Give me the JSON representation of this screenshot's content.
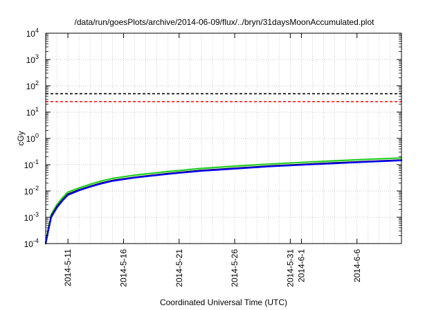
{
  "chart_data": {
    "type": "line",
    "title": "/data/run/goesPlots/archive/2014-06-09/flux/../bryn/31daysMoonAccumulated.plot",
    "xlabel": "Coordinated Universal Time (UTC)",
    "ylabel": "cGy",
    "y_scale": "log",
    "grid": true,
    "x_range": [
      "2014-05-09",
      "2014-06-10"
    ],
    "ylim": [
      0.0001,
      10000
    ],
    "x_ticks": [
      "2014-5-11",
      "2014-5-16",
      "2014-5-21",
      "2014-5-26",
      "2014-5-31",
      "2014-6-1",
      "2014-6-6"
    ],
    "x_tick_dates": [
      "2014-05-11",
      "2014-05-16",
      "2014-05-21",
      "2014-05-26",
      "2014-05-31",
      "2014-06-01",
      "2014-06-06"
    ],
    "y_ticks": [
      {
        "value": 0.0001,
        "base": "10",
        "exp": "-4"
      },
      {
        "value": 0.001,
        "base": "10",
        "exp": "-3"
      },
      {
        "value": 0.01,
        "base": "10",
        "exp": "-2"
      },
      {
        "value": 0.1,
        "base": "10",
        "exp": "-1"
      },
      {
        "value": 1,
        "base": "10",
        "exp": "0"
      },
      {
        "value": 10,
        "base": "10",
        "exp": "1"
      },
      {
        "value": 100,
        "base": "10",
        "exp": "2"
      },
      {
        "value": 1000,
        "base": "10",
        "exp": "3"
      },
      {
        "value": 10000,
        "base": "10",
        "exp": "4"
      }
    ],
    "thresholds": [
      {
        "value": 50,
        "color": "#000000",
        "style": "dashed"
      },
      {
        "value": 25,
        "color": "#ff0000",
        "style": "dashed"
      }
    ],
    "series": [
      {
        "color": "#22cc22",
        "x": [
          "2014-05-09",
          "2014-05-09T06:00",
          "2014-05-09T12:00",
          "2014-05-10",
          "2014-05-10T12:00",
          "2014-05-11",
          "2014-05-12",
          "2014-05-13",
          "2014-05-14",
          "2014-05-15",
          "2014-05-17",
          "2014-05-20",
          "2014-05-23",
          "2014-05-26",
          "2014-05-29",
          "2014-06-01",
          "2014-06-04",
          "2014-06-07",
          "2014-06-10"
        ],
        "y": [
          0.00011,
          0.0004,
          0.0013,
          0.003,
          0.0055,
          0.009,
          0.013,
          0.018,
          0.024,
          0.03,
          0.04,
          0.055,
          0.072,
          0.088,
          0.105,
          0.122,
          0.14,
          0.16,
          0.18
        ]
      },
      {
        "color": "#000000",
        "x": [
          "2014-05-09",
          "2014-05-09T06:00",
          "2014-05-09T12:00",
          "2014-05-10",
          "2014-05-10T12:00",
          "2014-05-11",
          "2014-05-12",
          "2014-05-13",
          "2014-05-14",
          "2014-05-15",
          "2014-05-17",
          "2014-05-20",
          "2014-05-23",
          "2014-05-26",
          "2014-05-29",
          "2014-06-01",
          "2014-06-04",
          "2014-06-07",
          "2014-06-10"
        ],
        "y": [
          0.0001,
          0.00035,
          0.0011,
          0.0025,
          0.0045,
          0.0075,
          0.011,
          0.015,
          0.02,
          0.025,
          0.033,
          0.046,
          0.06,
          0.073,
          0.088,
          0.102,
          0.117,
          0.133,
          0.15
        ]
      },
      {
        "color": "#0000ff",
        "x": [
          "2014-05-09",
          "2014-05-09T06:00",
          "2014-05-09T12:00",
          "2014-05-10",
          "2014-05-10T12:00",
          "2014-05-11",
          "2014-05-12",
          "2014-05-13",
          "2014-05-14",
          "2014-05-15",
          "2014-05-17",
          "2014-05-20",
          "2014-05-23",
          "2014-05-26",
          "2014-05-29",
          "2014-06-01",
          "2014-06-04",
          "2014-06-07",
          "2014-06-10"
        ],
        "y": [
          0.0001,
          0.00033,
          0.001,
          0.0023,
          0.0042,
          0.007,
          0.0105,
          0.0145,
          0.019,
          0.024,
          0.032,
          0.044,
          0.058,
          0.07,
          0.085,
          0.098,
          0.112,
          0.128,
          0.145
        ]
      }
    ]
  }
}
